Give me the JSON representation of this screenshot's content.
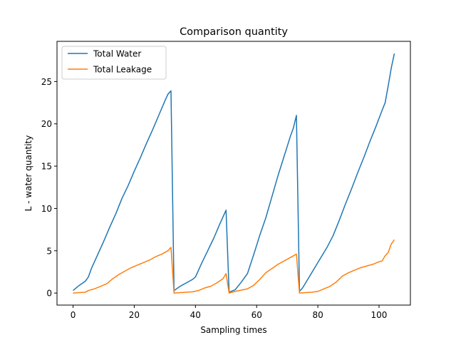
{
  "chart_data": {
    "type": "line",
    "title": "Comparison quantity",
    "xlabel": "Sampling times",
    "ylabel": "L - water quantity",
    "xlim": [
      -5.25,
      110.25
    ],
    "ylim": [
      -1.42,
      29.75
    ],
    "xticks": [
      0,
      20,
      40,
      60,
      80,
      100
    ],
    "yticks": [
      0,
      5,
      10,
      15,
      20,
      25
    ],
    "grid": false,
    "legend_position": "top-left",
    "series": [
      {
        "name": "Total Water",
        "color": "#1f77b4",
        "points": [
          [
            0,
            0.3
          ],
          [
            2,
            0.9
          ],
          [
            4,
            1.4
          ],
          [
            5,
            1.9
          ],
          [
            6,
            2.9
          ],
          [
            8,
            4.5
          ],
          [
            10,
            6.1
          ],
          [
            12,
            7.8
          ],
          [
            14,
            9.4
          ],
          [
            16,
            11.2
          ],
          [
            18,
            12.7
          ],
          [
            20,
            14.4
          ],
          [
            22,
            16.0
          ],
          [
            24,
            17.7
          ],
          [
            26,
            19.3
          ],
          [
            28,
            21.0
          ],
          [
            30,
            22.7
          ],
          [
            31,
            23.5
          ],
          [
            32,
            23.9
          ],
          [
            33,
            0.3
          ],
          [
            35,
            0.8
          ],
          [
            37,
            1.2
          ],
          [
            39,
            1.6
          ],
          [
            40,
            1.9
          ],
          [
            42,
            3.5
          ],
          [
            44,
            5.0
          ],
          [
            46,
            6.5
          ],
          [
            48,
            8.2
          ],
          [
            50,
            9.8
          ],
          [
            51,
            0.1
          ],
          [
            53,
            0.4
          ],
          [
            55,
            1.3
          ],
          [
            57,
            2.3
          ],
          [
            59,
            4.5
          ],
          [
            61,
            6.8
          ],
          [
            63,
            8.9
          ],
          [
            65,
            11.4
          ],
          [
            67,
            13.9
          ],
          [
            69,
            16.2
          ],
          [
            71,
            18.5
          ],
          [
            72,
            19.5
          ],
          [
            73,
            21.0
          ],
          [
            74,
            0.2
          ],
          [
            75,
            0.6
          ],
          [
            77,
            1.8
          ],
          [
            79,
            3.0
          ],
          [
            81,
            4.2
          ],
          [
            83,
            5.4
          ],
          [
            85,
            6.8
          ],
          [
            87,
            8.6
          ],
          [
            89,
            10.5
          ],
          [
            91,
            12.3
          ],
          [
            93,
            14.2
          ],
          [
            95,
            16.0
          ],
          [
            97,
            17.9
          ],
          [
            99,
            19.7
          ],
          [
            101,
            21.6
          ],
          [
            102,
            22.5
          ],
          [
            103,
            24.5
          ],
          [
            104,
            26.6
          ],
          [
            105,
            28.3
          ]
        ]
      },
      {
        "name": "Total Leakage",
        "color": "#ff7f0e",
        "points": [
          [
            0,
            0.0
          ],
          [
            2,
            0.05
          ],
          [
            4,
            0.1
          ],
          [
            5,
            0.3
          ],
          [
            7,
            0.5
          ],
          [
            9,
            0.8
          ],
          [
            11,
            1.1
          ],
          [
            13,
            1.7
          ],
          [
            15,
            2.2
          ],
          [
            17,
            2.6
          ],
          [
            19,
            3.0
          ],
          [
            21,
            3.3
          ],
          [
            23,
            3.6
          ],
          [
            25,
            3.9
          ],
          [
            27,
            4.3
          ],
          [
            29,
            4.6
          ],
          [
            31,
            5.0
          ],
          [
            32,
            5.4
          ],
          [
            33,
            0.0
          ],
          [
            35,
            0.05
          ],
          [
            37,
            0.1
          ],
          [
            39,
            0.15
          ],
          [
            41,
            0.3
          ],
          [
            43,
            0.6
          ],
          [
            45,
            0.8
          ],
          [
            47,
            1.2
          ],
          [
            49,
            1.7
          ],
          [
            50,
            2.3
          ],
          [
            51,
            0.0
          ],
          [
            53,
            0.2
          ],
          [
            55,
            0.35
          ],
          [
            57,
            0.5
          ],
          [
            59,
            0.9
          ],
          [
            61,
            1.6
          ],
          [
            63,
            2.4
          ],
          [
            65,
            2.9
          ],
          [
            67,
            3.4
          ],
          [
            69,
            3.8
          ],
          [
            71,
            4.2
          ],
          [
            73,
            4.6
          ],
          [
            74,
            0.0
          ],
          [
            76,
            0.05
          ],
          [
            78,
            0.1
          ],
          [
            80,
            0.2
          ],
          [
            82,
            0.5
          ],
          [
            84,
            0.8
          ],
          [
            86,
            1.3
          ],
          [
            88,
            2.0
          ],
          [
            90,
            2.4
          ],
          [
            92,
            2.7
          ],
          [
            94,
            3.0
          ],
          [
            96,
            3.2
          ],
          [
            98,
            3.4
          ],
          [
            100,
            3.7
          ],
          [
            101,
            3.8
          ],
          [
            102,
            4.4
          ],
          [
            103,
            4.8
          ],
          [
            104,
            5.8
          ],
          [
            105,
            6.3
          ]
        ]
      }
    ]
  }
}
